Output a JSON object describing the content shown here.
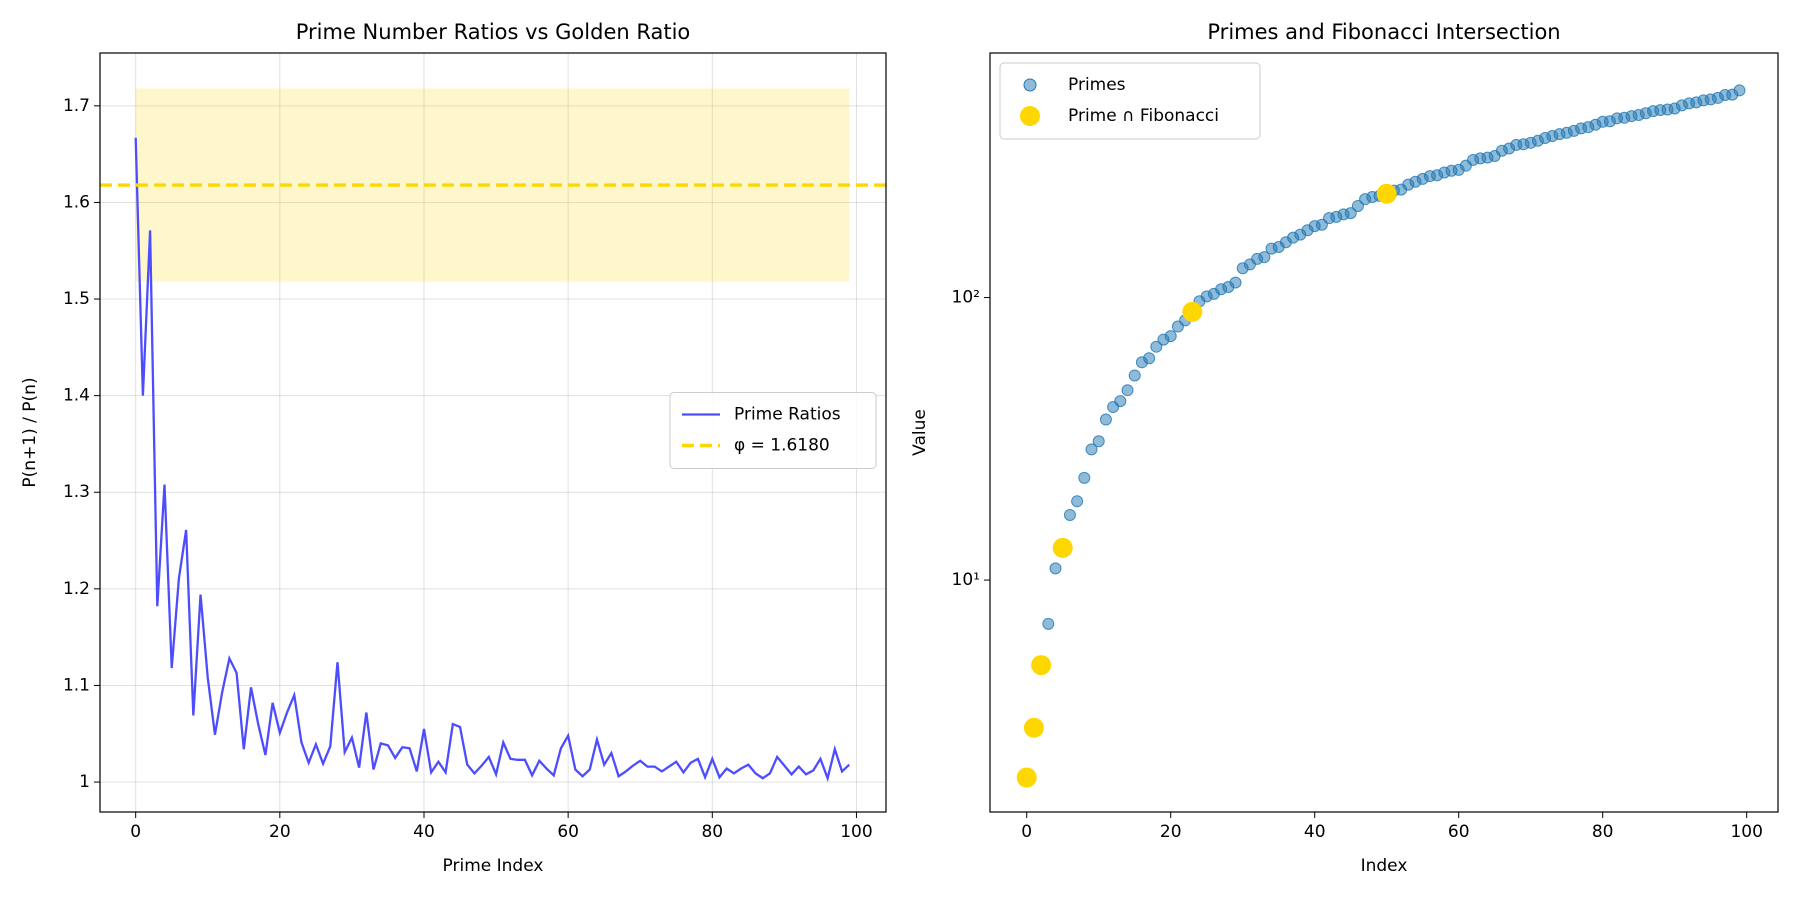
{
  "chart_data": [
    {
      "type": "line",
      "title": "Prime Number Ratios vs Golden Ratio",
      "x_label": "Prime Index",
      "y_label": "P(n+1) / P(n)",
      "x": [
        0,
        1,
        2,
        3,
        4,
        5,
        6,
        7,
        8,
        9,
        10,
        11,
        12,
        13,
        14,
        15,
        16,
        17,
        18,
        19,
        20,
        21,
        22,
        23,
        24,
        25,
        26,
        27,
        28,
        29,
        30,
        31,
        32,
        33,
        34,
        35,
        36,
        37,
        38,
        39,
        40,
        41,
        42,
        43,
        44,
        45,
        46,
        47,
        48,
        49,
        50,
        51,
        52,
        53,
        54,
        55,
        56,
        57,
        58,
        59,
        60,
        61,
        62,
        63,
        64,
        65,
        66,
        67,
        68,
        69,
        70,
        71,
        72,
        73,
        74,
        75,
        76,
        77,
        78,
        79,
        80,
        81,
        82,
        83,
        84,
        85,
        86,
        87,
        88,
        89,
        90,
        91,
        92,
        93,
        94,
        95,
        96,
        97,
        98,
        99
      ],
      "series": [
        {
          "name": "Prime Ratios",
          "color": "#4d4dff",
          "values": [
            1.667,
            1.4,
            1.571,
            1.182,
            1.308,
            1.118,
            1.211,
            1.261,
            1.069,
            1.194,
            1.108,
            1.049,
            1.093,
            1.128,
            1.113,
            1.034,
            1.098,
            1.06,
            1.028,
            1.082,
            1.051,
            1.072,
            1.09,
            1.041,
            1.02,
            1.039,
            1.019,
            1.037,
            1.124,
            1.031,
            1.046,
            1.015,
            1.072,
            1.013,
            1.04,
            1.038,
            1.025,
            1.036,
            1.035,
            1.011,
            1.055,
            1.01,
            1.021,
            1.01,
            1.06,
            1.057,
            1.018,
            1.009,
            1.017,
            1.026,
            1.008,
            1.041,
            1.024,
            1.023,
            1.023,
            1.007,
            1.022,
            1.014,
            1.007,
            1.035,
            1.048,
            1.013,
            1.006,
            1.013,
            1.044,
            1.018,
            1.03,
            1.006,
            1.011,
            1.017,
            1.022,
            1.016,
            1.016,
            1.011,
            1.016,
            1.021,
            1.01,
            1.02,
            1.024,
            1.005,
            1.024,
            1.005,
            1.014,
            1.009,
            1.014,
            1.018,
            1.009,
            1.004,
            1.009,
            1.026,
            1.017,
            1.008,
            1.016,
            1.008,
            1.012,
            1.024,
            1.004,
            1.034,
            1.011,
            1.018
          ]
        }
      ],
      "reference_line": {
        "name": "φ = 1.6180",
        "value": 1.618034,
        "color": "#FFD700",
        "band": [
          1.518034,
          1.718034
        ],
        "band_x": [
          0,
          99
        ]
      },
      "xlim": [
        -4.95,
        104.1
      ],
      "ylim": [
        0.969,
        1.7547
      ],
      "xticks": [
        0,
        20,
        40,
        60,
        80,
        100
      ],
      "yticks": [
        1.0,
        1.1,
        1.2,
        1.3,
        1.4,
        1.5,
        1.6,
        1.7
      ],
      "grid": true,
      "legend": "center right"
    },
    {
      "type": "scatter",
      "title": "Primes and Fibonacci Intersection",
      "x_label": "Index",
      "y_label": "Value",
      "series": [
        {
          "name": "Primes",
          "color": "#1f77b4",
          "x": [
            0,
            1,
            2,
            3,
            4,
            5,
            6,
            7,
            8,
            9,
            10,
            11,
            12,
            13,
            14,
            15,
            16,
            17,
            18,
            19,
            20,
            21,
            22,
            23,
            24,
            25,
            26,
            27,
            28,
            29,
            30,
            31,
            32,
            33,
            34,
            35,
            36,
            37,
            38,
            39,
            40,
            41,
            42,
            43,
            44,
            45,
            46,
            47,
            48,
            49,
            50,
            51,
            52,
            53,
            54,
            55,
            56,
            57,
            58,
            59,
            60,
            61,
            62,
            63,
            64,
            65,
            66,
            67,
            68,
            69,
            70,
            71,
            72,
            73,
            74,
            75,
            76,
            77,
            78,
            79,
            80,
            81,
            82,
            83,
            84,
            85,
            86,
            87,
            88,
            89,
            90,
            91,
            92,
            93,
            94,
            95,
            96,
            97,
            98,
            99
          ],
          "values": [
            2,
            3,
            5,
            7,
            11,
            13,
            17,
            19,
            23,
            29,
            31,
            37,
            41,
            43,
            47,
            53,
            59,
            61,
            67,
            71,
            73,
            79,
            83,
            89,
            97,
            101,
            103,
            107,
            109,
            113,
            127,
            131,
            137,
            139,
            149,
            151,
            157,
            163,
            167,
            173,
            179,
            181,
            191,
            193,
            197,
            199,
            211,
            223,
            227,
            229,
            233,
            239,
            241,
            251,
            257,
            263,
            269,
            271,
            277,
            281,
            283,
            293,
            307,
            311,
            313,
            317,
            331,
            337,
            347,
            349,
            353,
            359,
            367,
            373,
            379,
            383,
            389,
            397,
            401,
            409,
            419,
            421,
            431,
            433,
            439,
            443,
            449,
            457,
            461,
            463,
            467,
            479,
            487,
            491,
            499,
            503,
            509,
            521,
            523,
            541
          ]
        },
        {
          "name": "Prime ∩ Fibonacci",
          "color": "#FFD700",
          "x": [
            0,
            1,
            2,
            5,
            23,
            50
          ],
          "values": [
            2,
            3,
            5,
            13,
            89,
            233
          ]
        }
      ],
      "xlim": [
        -5.1,
        104.35
      ],
      "ylim": [
        1.51,
        734
      ],
      "log_y": true,
      "xticks": [
        0,
        20,
        40,
        60,
        80,
        100
      ],
      "yticks": [
        {
          "value": 10,
          "label": "10¹"
        },
        {
          "value": 100,
          "label": "10²"
        }
      ],
      "grid": false,
      "legend": "upper left"
    }
  ]
}
